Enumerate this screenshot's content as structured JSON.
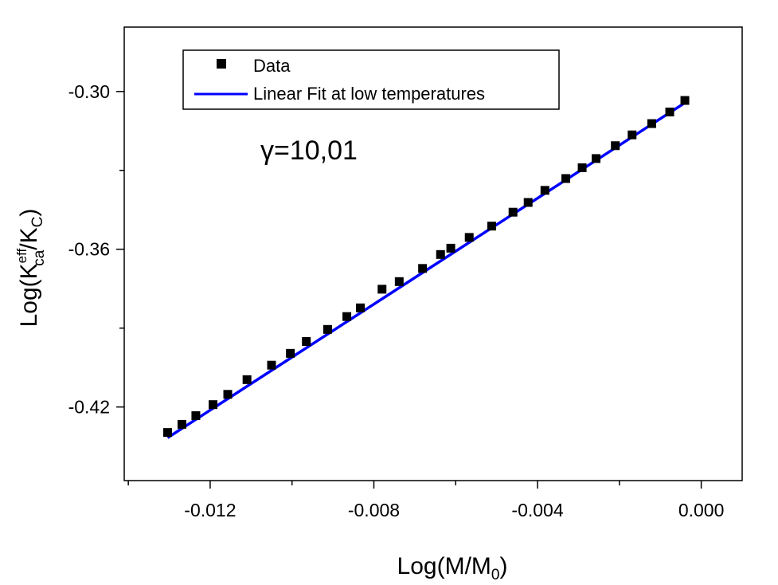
{
  "chart_data": {
    "type": "scatter",
    "xlabel": {
      "main": "Log(M/M",
      "sub": "0",
      "close": ")"
    },
    "ylabel": {
      "main": "Log(K",
      "sup": "eff",
      "sub": "ca",
      "mid": "/K",
      "sub2": "C",
      "close": ")"
    },
    "xlim": [
      -0.0141,
      0.001
    ],
    "ylim": [
      -0.448,
      -0.2755
    ],
    "xticks": [
      {
        "value": -0.012,
        "label": "-0.012"
      },
      {
        "value": -0.008,
        "label": "-0.008"
      },
      {
        "value": -0.004,
        "label": "-0.004"
      },
      {
        "value": 0.0,
        "label": "0.000"
      }
    ],
    "xminor": [
      -0.014,
      -0.01,
      -0.006,
      -0.002
    ],
    "yticks": [
      {
        "value": -0.3,
        "label": "-0.30"
      },
      {
        "value": -0.36,
        "label": "-0.36"
      },
      {
        "value": -0.42,
        "label": "-0.42"
      }
    ],
    "yminor": [
      -0.33,
      -0.39,
      -0.45
    ],
    "legend": {
      "position": "top-left",
      "entries": [
        {
          "label": "Data",
          "marker": "square",
          "color": "#000000"
        },
        {
          "label": "Linear Fit at low temperatures",
          "marker": "line",
          "color": "#0000ff"
        }
      ]
    },
    "annotation": {
      "text": "γ=10,01"
    },
    "series": [
      {
        "name": "Data",
        "kind": "points",
        "color": "#000000",
        "points": [
          [
            -0.01304,
            -0.4297
          ],
          [
            -0.01269,
            -0.4266
          ],
          [
            -0.01235,
            -0.4233
          ],
          [
            -0.01193,
            -0.4191
          ],
          [
            -0.01157,
            -0.4152
          ],
          [
            -0.0111,
            -0.4096
          ],
          [
            -0.0105,
            -0.4041
          ],
          [
            -0.01004,
            -0.3996
          ],
          [
            -0.00965,
            -0.3951
          ],
          [
            -0.00913,
            -0.3905
          ],
          [
            -0.00866,
            -0.3856
          ],
          [
            -0.00833,
            -0.3823
          ],
          [
            -0.0078,
            -0.3752
          ],
          [
            -0.00738,
            -0.3723
          ],
          [
            -0.00681,
            -0.3673
          ],
          [
            -0.00637,
            -0.362
          ],
          [
            -0.00612,
            -0.3596
          ],
          [
            -0.00567,
            -0.3555
          ],
          [
            -0.00512,
            -0.3512
          ],
          [
            -0.0046,
            -0.3459
          ],
          [
            -0.00423,
            -0.3422
          ],
          [
            -0.00382,
            -0.3376
          ],
          [
            -0.00331,
            -0.3331
          ],
          [
            -0.00291,
            -0.329
          ],
          [
            -0.00257,
            -0.3255
          ],
          [
            -0.0021,
            -0.3206
          ],
          [
            -0.00169,
            -0.3165
          ],
          [
            -0.00121,
            -0.3122
          ],
          [
            -0.00077,
            -0.3078
          ],
          [
            -0.0004,
            -0.3034
          ]
        ]
      },
      {
        "name": "Linear Fit at low temperatures",
        "kind": "line",
        "color": "#0000ff",
        "points": [
          [
            -0.01304,
            -0.4317
          ],
          [
            -0.0004,
            -0.3043
          ]
        ]
      }
    ]
  }
}
